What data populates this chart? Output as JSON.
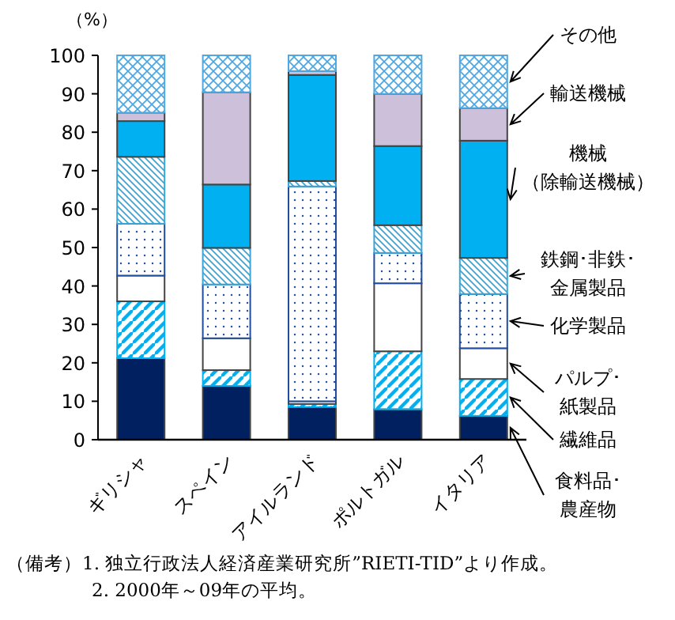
{
  "chart_data": {
    "type": "bar",
    "stacked": true,
    "ylabel": "（%）",
    "categories": [
      "ギリシャ",
      "スペイン",
      "アイルランド",
      "ポルトガル",
      "イタリア"
    ],
    "ylim": [
      0,
      100
    ],
    "yticks": [
      0,
      10,
      20,
      30,
      40,
      50,
      60,
      70,
      80,
      90,
      100
    ],
    "legend": "right",
    "series": [
      {
        "name": "食料品･農産物",
        "color": "#002060",
        "values": [
          21.2,
          14.0,
          8.5,
          7.9,
          6.2
        ]
      },
      {
        "name": "繊維品",
        "color": "#00b0f0",
        "values": [
          14.8,
          4.1,
          0.8,
          15.1,
          9.6
        ]
      },
      {
        "name": "パルプ･紙製品",
        "color": "#ffffff",
        "values": [
          6.7,
          8.3,
          0.7,
          17.7,
          8.0
        ]
      },
      {
        "name": "化学製品",
        "color": "#1f4e9f",
        "values": [
          13.5,
          14.0,
          55.9,
          7.9,
          14.1
        ]
      },
      {
        "name": "鉄鋼･非鉄･金属製品",
        "color": "#3aa6d8",
        "values": [
          17.4,
          9.5,
          1.4,
          7.2,
          9.4
        ]
      },
      {
        "name": "機械（除輸送機械）",
        "color": "#00b0f0",
        "values": [
          9.3,
          16.5,
          27.6,
          20.6,
          30.5
        ]
      },
      {
        "name": "輸送機械",
        "color": "#ccc0da",
        "values": [
          2.2,
          24.0,
          1.0,
          13.6,
          8.5
        ]
      },
      {
        "name": "その他",
        "color": "#4fa8e0",
        "values": [
          14.9,
          9.6,
          4.1,
          10.0,
          13.7
        ]
      }
    ],
    "annotations": [
      "（備考）1.  独立行政法人経済産業研究所”RIETI-TID”より作成。",
      "2.  2000年～09年の平均。"
    ]
  }
}
